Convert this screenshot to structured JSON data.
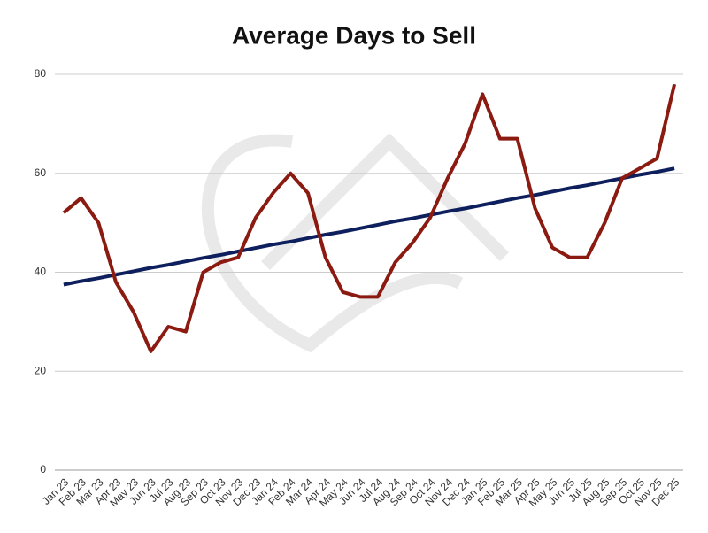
{
  "chart_data": {
    "type": "line",
    "title": "Average Days to Sell",
    "categories": [
      "Jan 23",
      "Feb 23",
      "Mar 23",
      "Apr 23",
      "May 23",
      "Jun 23",
      "Jul 23",
      "Aug 23",
      "Sep 23",
      "Oct 23",
      "Nov 23",
      "Dec 23",
      "Jan 24",
      "Feb 24",
      "Mar 24",
      "Apr 24",
      "May 24",
      "Jun 24",
      "Jul 24",
      "Aug 24",
      "Sep 24",
      "Oct 24",
      "Nov 24",
      "Dec 24",
      "Jan 25",
      "Feb 25",
      "Mar 25",
      "Apr 25",
      "May 25",
      "Jun 25",
      "Jul 25",
      "Aug 25",
      "Sep 25",
      "Oct 25",
      "Nov 25",
      "Dec 25"
    ],
    "series": [
      {
        "color": "#8b1a10",
        "values": [
          52,
          55,
          50,
          38,
          32,
          24,
          29,
          28,
          40,
          42,
          43,
          51,
          56,
          60,
          56,
          43,
          36,
          35,
          35,
          42,
          46,
          51,
          59,
          66,
          76,
          67,
          67,
          53,
          45,
          43,
          43,
          50,
          59,
          61,
          63,
          78
        ]
      },
      {
        "color": "#0d1f5c",
        "values": [
          37.5,
          38.2,
          38.8,
          39.5,
          40.2,
          40.9,
          41.5,
          42.2,
          42.9,
          43.5,
          44.2,
          44.9,
          45.6,
          46.2,
          46.9,
          47.6,
          48.2,
          48.9,
          49.6,
          50.3,
          50.9,
          51.6,
          52.3,
          52.9,
          53.6,
          54.3,
          55.0,
          55.6,
          56.3,
          57.0,
          57.6,
          58.3,
          59.0,
          59.7,
          60.3,
          61.0
        ]
      }
    ],
    "ylim": [
      0,
      80
    ],
    "yticks": [
      0,
      20,
      40,
      60,
      80
    ],
    "grid": true
  }
}
